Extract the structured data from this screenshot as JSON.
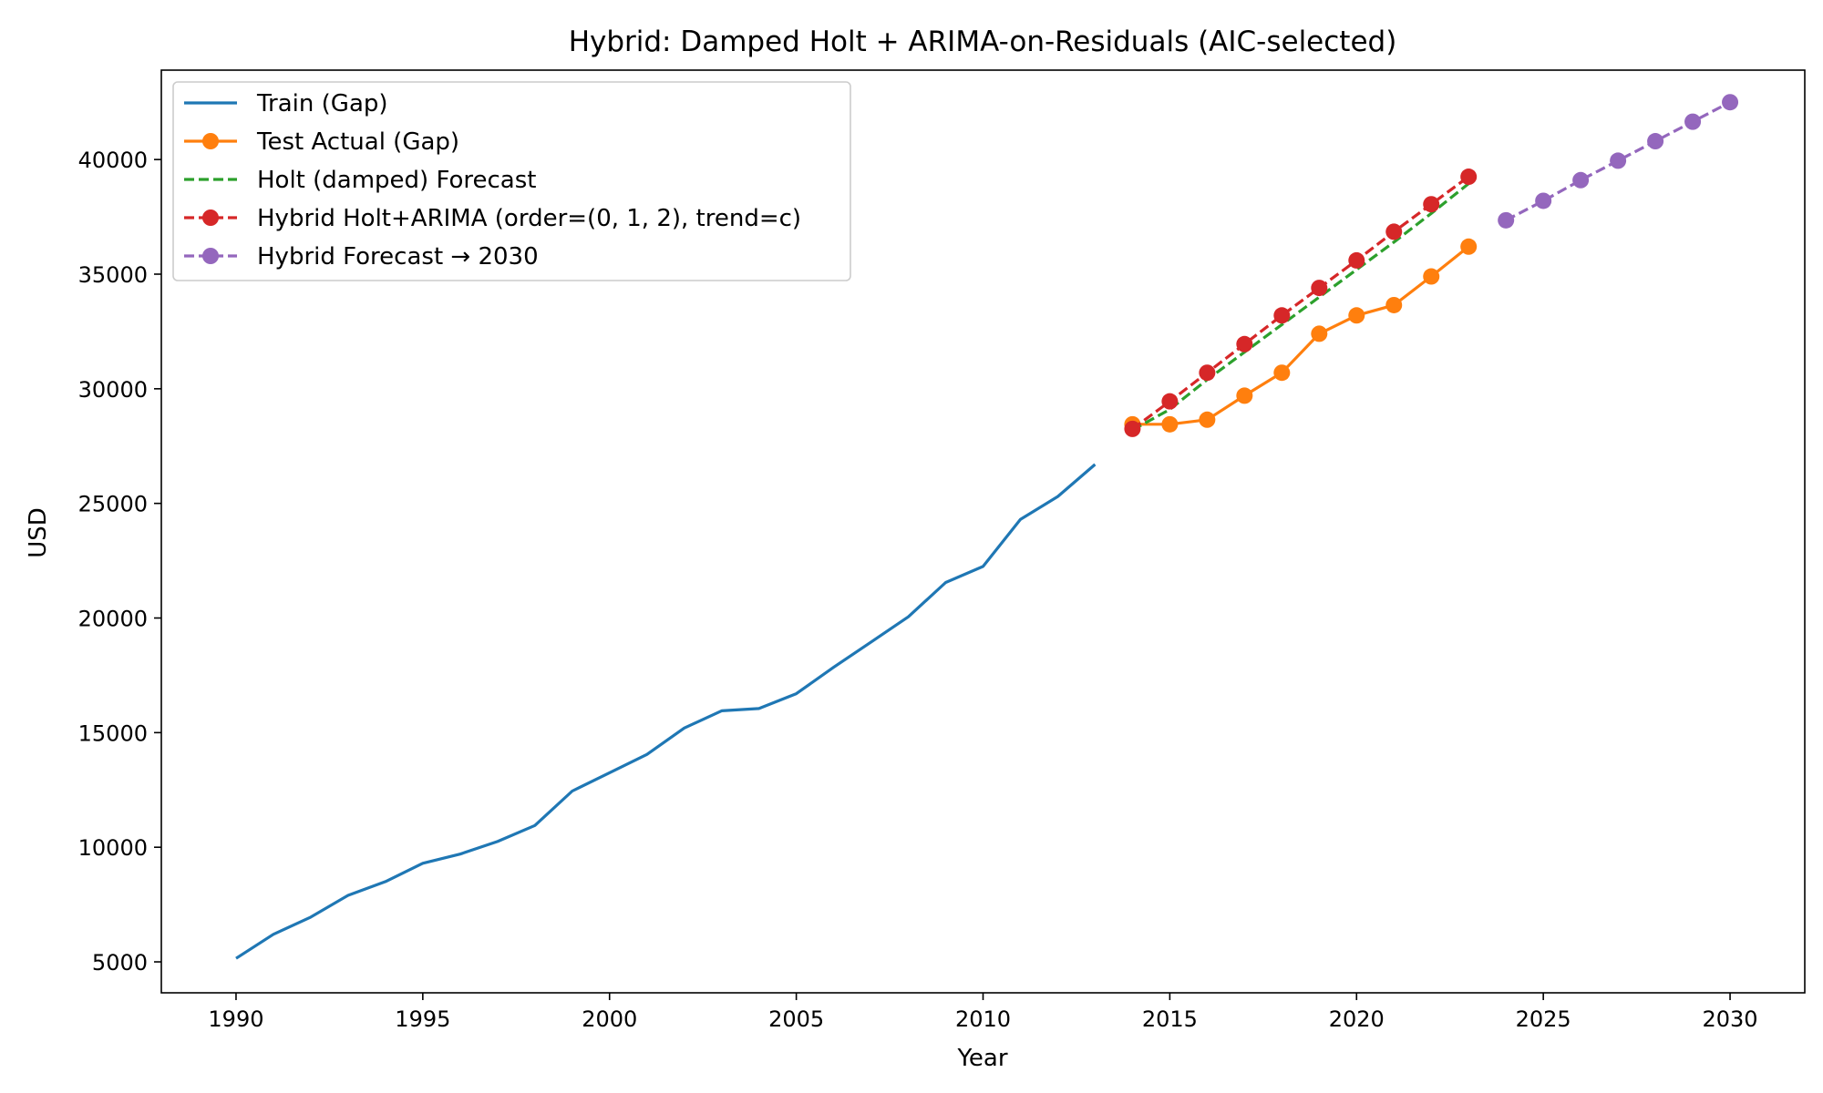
{
  "chart_data": {
    "type": "line",
    "title": "Hybrid: Damped Holt + ARIMA-on-Residuals (AIC-selected)",
    "xlabel": "Year",
    "ylabel": "USD",
    "xlim": [
      1988,
      2032
    ],
    "ylim": [
      3650,
      43900
    ],
    "x_ticks": [
      1990,
      1995,
      2000,
      2005,
      2010,
      2015,
      2020,
      2025,
      2030
    ],
    "y_ticks": [
      5000,
      10000,
      15000,
      20000,
      25000,
      30000,
      35000,
      40000
    ],
    "grid": false,
    "legend_position": "upper-left",
    "series": [
      {
        "name": "Train (Gap)",
        "color": "#1f77b4",
        "linestyle": "solid",
        "marker": "none",
        "x": [
          1990,
          1991,
          1992,
          1993,
          1994,
          1995,
          1996,
          1997,
          1998,
          1999,
          2000,
          2001,
          2002,
          2003,
          2004,
          2005,
          2006,
          2007,
          2008,
          2009,
          2010,
          2011,
          2012,
          2013
        ],
        "y": [
          5150,
          6200,
          6950,
          7900,
          8500,
          9300,
          9700,
          10250,
          10950,
          12450,
          13250,
          14050,
          15200,
          15950,
          16050,
          16700,
          17850,
          18950,
          20050,
          21550,
          22250,
          24300,
          25300,
          26700
        ]
      },
      {
        "name": "Test Actual (Gap)",
        "color": "#ff7f0e",
        "linestyle": "solid",
        "marker": "circle",
        "x": [
          2014,
          2015,
          2016,
          2017,
          2018,
          2019,
          2020,
          2021,
          2022,
          2023
        ],
        "y": [
          28450,
          28450,
          28650,
          29700,
          30700,
          32400,
          33200,
          33650,
          34900,
          36200
        ]
      },
      {
        "name": "Holt (damped) Forecast",
        "color": "#2ca02c",
        "linestyle": "dashed",
        "marker": "none",
        "x": [
          2014,
          2015,
          2016,
          2017,
          2018,
          2019,
          2020,
          2021,
          2022,
          2023
        ],
        "y": [
          28200,
          29100,
          30400,
          31600,
          32800,
          34000,
          35200,
          36400,
          37650,
          38950
        ]
      },
      {
        "name": "Hybrid Holt+ARIMA (order=(0, 1, 2), trend=c)",
        "color": "#d62728",
        "linestyle": "dashed",
        "marker": "circle",
        "x": [
          2014,
          2015,
          2016,
          2017,
          2018,
          2019,
          2020,
          2021,
          2022,
          2023
        ],
        "y": [
          28250,
          29450,
          30700,
          31950,
          33200,
          34400,
          35600,
          36850,
          38050,
          39250
        ]
      },
      {
        "name": "Hybrid Forecast → 2030",
        "color": "#9467bd",
        "linestyle": "dashed",
        "marker": "circle",
        "x": [
          2024,
          2025,
          2026,
          2027,
          2028,
          2029,
          2030
        ],
        "y": [
          37350,
          38200,
          39100,
          39950,
          40800,
          41650,
          42500
        ]
      }
    ]
  }
}
